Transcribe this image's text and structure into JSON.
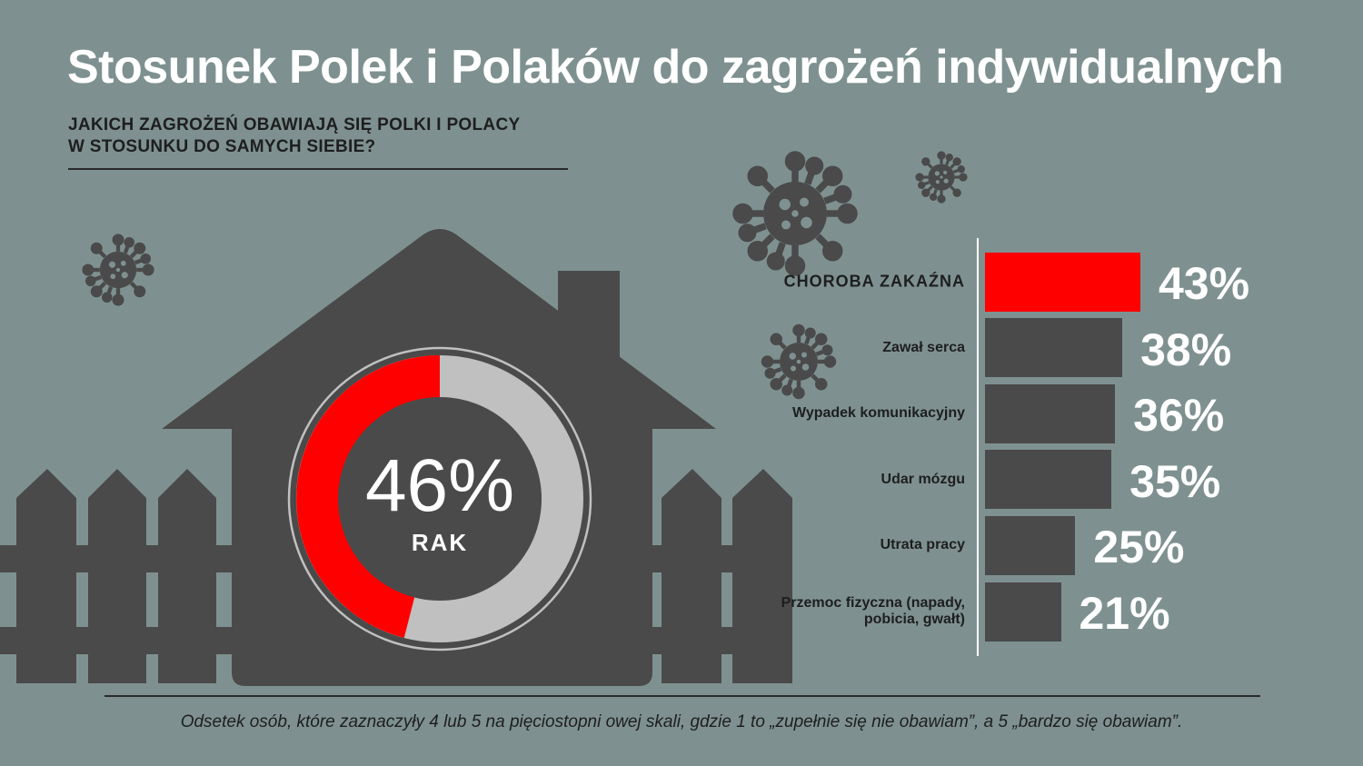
{
  "title": "Stosunek Polek i Polaków do zagrożeń indywidualnych",
  "subtitle_lines": [
    "JAKICH ZAGROŻEŃ OBAWIAJĄ SIĘ POLKI I POLACY",
    "W STOSUNKU DO SAMYCH SIEBIE?"
  ],
  "footnote": "Odsetek osób, które zaznaczyły 4 lub 5 na pięciostopni owej skali, gdzie 1 to „zupełnie się nie obawiam”, a 5 „bardzo się obawiam”.",
  "colors": {
    "background": "#7e9190",
    "house": "#4a4a4a",
    "highlight": "#ff0000",
    "bar": "#4a4a4a",
    "donut_rest": "#c0c0c0"
  },
  "icons": [
    "virus-icon",
    "house-icon",
    "fence-icon"
  ],
  "chart_data": [
    {
      "type": "pie",
      "variant": "donut",
      "value": 46,
      "value_label": "46%",
      "label": "RAK",
      "max": 100
    },
    {
      "type": "bar",
      "orientation": "horizontal",
      "categories": [
        "CHOROBA ZAKAŹNA",
        "Zawał serca",
        "Wypadek komunikacyjny",
        "Udar mózgu",
        "Utrata pracy",
        "Przemoc fizyczna (napady, pobicia, gwałt)"
      ],
      "values": [
        43,
        38,
        36,
        35,
        25,
        21
      ],
      "value_labels": [
        "43%",
        "38%",
        "36%",
        "35%",
        "25%",
        "21%"
      ],
      "highlight_index": 0,
      "unit": "%"
    }
  ]
}
